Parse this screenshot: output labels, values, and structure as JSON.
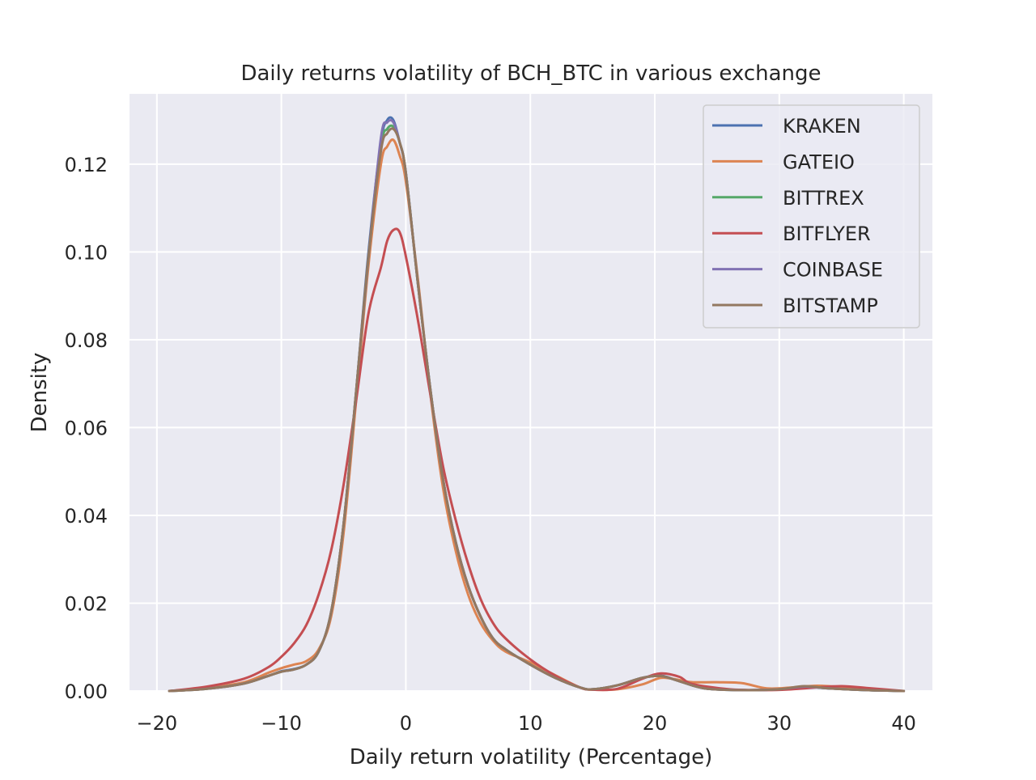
{
  "chart_data": {
    "type": "line",
    "title": "Daily returns volatility of BCH_BTC in various exchange",
    "xlabel": "Daily return volatility (Percentage)",
    "ylabel": "Density",
    "xlim": [
      -22.2,
      42.3
    ],
    "ylim": [
      0,
      0.136
    ],
    "xticks": [
      -20,
      -10,
      0,
      10,
      20,
      30,
      40
    ],
    "xtick_labels": [
      "−20",
      "−10",
      "0",
      "10",
      "20",
      "30",
      "40"
    ],
    "yticks": [
      0,
      0.02,
      0.04,
      0.06,
      0.08,
      0.1,
      0.12
    ],
    "ytick_labels": [
      "0.00",
      "0.02",
      "0.04",
      "0.06",
      "0.08",
      "0.10",
      "0.12"
    ],
    "grid": true,
    "legend_position": "top-right",
    "background": "#eaeaf2",
    "series": [
      {
        "name": "KRAKEN",
        "color": "#4c72b0",
        "x": [
          -19,
          -16,
          -13,
          -11,
          -10,
          -9,
          -8,
          -7,
          -6,
          -5,
          -4,
          -3,
          -2,
          -1.5,
          -1,
          -0.5,
          0,
          1,
          2,
          3,
          4,
          5,
          6,
          7,
          8,
          10,
          12,
          14,
          15,
          17,
          19,
          20.5,
          22,
          24,
          27,
          30,
          32,
          34,
          37,
          40
        ],
        "values": [
          0.0,
          0.0006,
          0.0018,
          0.0035,
          0.0045,
          0.005,
          0.006,
          0.009,
          0.018,
          0.038,
          0.068,
          0.1,
          0.125,
          0.13,
          0.13,
          0.125,
          0.118,
          0.092,
          0.068,
          0.048,
          0.034,
          0.024,
          0.017,
          0.012,
          0.0095,
          0.006,
          0.003,
          0.0008,
          0.0004,
          0.0013,
          0.003,
          0.0035,
          0.0022,
          0.0006,
          0.0002,
          0.0004,
          0.001,
          0.0006,
          0.0002,
          0.0
        ]
      },
      {
        "name": "GATEIO",
        "color": "#dd8452",
        "x": [
          -19,
          -16,
          -13,
          -11,
          -10,
          -9,
          -8,
          -7,
          -6,
          -5,
          -4,
          -3,
          -2,
          -1.5,
          -1,
          -0.5,
          0,
          1,
          2,
          3,
          4,
          5,
          6,
          7,
          8,
          10,
          12,
          14,
          15,
          17,
          19,
          20.5,
          22,
          23,
          25,
          27,
          29,
          31,
          33,
          35,
          37,
          40
        ],
        "values": [
          0.0,
          0.0007,
          0.002,
          0.0042,
          0.0052,
          0.006,
          0.0068,
          0.0095,
          0.017,
          0.036,
          0.066,
          0.097,
          0.12,
          0.124,
          0.1255,
          0.122,
          0.116,
          0.093,
          0.067,
          0.046,
          0.032,
          0.022,
          0.0155,
          0.0115,
          0.009,
          0.0065,
          0.0036,
          0.0008,
          0.0003,
          0.0004,
          0.0015,
          0.003,
          0.0025,
          0.002,
          0.002,
          0.0018,
          0.0006,
          0.0008,
          0.0012,
          0.0009,
          0.0003,
          0.0
        ]
      },
      {
        "name": "BITTREX",
        "color": "#55a868",
        "x": [
          -19,
          -16,
          -13,
          -11,
          -10,
          -9,
          -8,
          -7,
          -6,
          -5,
          -4,
          -3,
          -2,
          -1.5,
          -1,
          -0.5,
          0,
          1,
          2,
          3,
          4,
          5,
          6,
          7,
          8,
          10,
          12,
          14,
          15,
          17,
          19,
          20.5,
          22,
          24,
          27,
          30,
          32,
          34,
          37,
          40
        ],
        "values": [
          0.0,
          0.0005,
          0.0017,
          0.0035,
          0.0044,
          0.0049,
          0.006,
          0.009,
          0.018,
          0.038,
          0.068,
          0.099,
          0.124,
          0.128,
          0.1285,
          0.125,
          0.118,
          0.092,
          0.068,
          0.048,
          0.034,
          0.024,
          0.017,
          0.012,
          0.0095,
          0.006,
          0.003,
          0.0008,
          0.0004,
          0.0013,
          0.003,
          0.0034,
          0.0022,
          0.0006,
          0.0002,
          0.0004,
          0.001,
          0.0006,
          0.0002,
          0.0
        ]
      },
      {
        "name": "BITFLYER",
        "color": "#c44e52",
        "x": [
          -19,
          -16,
          -13,
          -11,
          -10,
          -9,
          -8,
          -7,
          -6,
          -5,
          -4,
          -3,
          -2,
          -1.5,
          -1,
          -0.5,
          0,
          1,
          2,
          3,
          4,
          5,
          6,
          7,
          8,
          10,
          12,
          14,
          15,
          17,
          19,
          20.5,
          22,
          23,
          26,
          29,
          31,
          33,
          35,
          37,
          40
        ],
        "values": [
          0.0,
          0.001,
          0.0028,
          0.0055,
          0.0078,
          0.0108,
          0.015,
          0.022,
          0.032,
          0.047,
          0.066,
          0.086,
          0.0965,
          0.1025,
          0.105,
          0.1045,
          0.099,
          0.084,
          0.067,
          0.051,
          0.039,
          0.029,
          0.021,
          0.0155,
          0.012,
          0.0072,
          0.0035,
          0.0008,
          0.0003,
          0.0005,
          0.0028,
          0.004,
          0.0032,
          0.0016,
          0.0004,
          0.0002,
          0.0004,
          0.0008,
          0.0011,
          0.0007,
          0.0
        ]
      },
      {
        "name": "COINBASE",
        "color": "#8172b3",
        "x": [
          -19,
          -16,
          -13,
          -11,
          -10,
          -9,
          -8,
          -7,
          -6,
          -5,
          -4,
          -3,
          -2,
          -1.5,
          -1,
          -0.5,
          0,
          1,
          2,
          3,
          4,
          5,
          6,
          7,
          8,
          10,
          12,
          14,
          15,
          17,
          19,
          20.5,
          22,
          24,
          27,
          30,
          32,
          34,
          37,
          40
        ],
        "values": [
          0.0,
          0.0005,
          0.0017,
          0.0035,
          0.0044,
          0.0049,
          0.006,
          0.009,
          0.018,
          0.038,
          0.068,
          0.099,
          0.126,
          0.1295,
          0.1295,
          0.125,
          0.118,
          0.092,
          0.068,
          0.048,
          0.034,
          0.024,
          0.017,
          0.012,
          0.0095,
          0.006,
          0.003,
          0.0008,
          0.0004,
          0.0013,
          0.003,
          0.0034,
          0.0022,
          0.0006,
          0.0002,
          0.0004,
          0.001,
          0.0006,
          0.0002,
          0.0
        ]
      },
      {
        "name": "BITSTAMP",
        "color": "#937860",
        "x": [
          -19,
          -16,
          -13,
          -11,
          -10,
          -9,
          -8,
          -7,
          -6,
          -5,
          -4,
          -3,
          -2,
          -1.5,
          -1,
          -0.5,
          0,
          1,
          2,
          3,
          4,
          5,
          6,
          7,
          8,
          10,
          12,
          14,
          15,
          17,
          19,
          20.5,
          22,
          24,
          27,
          30,
          32,
          34,
          37,
          40
        ],
        "values": [
          0.0,
          0.0005,
          0.0017,
          0.0035,
          0.0044,
          0.0049,
          0.006,
          0.009,
          0.018,
          0.038,
          0.068,
          0.099,
          0.123,
          0.127,
          0.128,
          0.125,
          0.118,
          0.092,
          0.068,
          0.048,
          0.034,
          0.024,
          0.017,
          0.012,
          0.0095,
          0.006,
          0.003,
          0.0008,
          0.0004,
          0.0013,
          0.003,
          0.0034,
          0.0022,
          0.0006,
          0.0002,
          0.0004,
          0.0011,
          0.0006,
          0.0002,
          0.0
        ]
      }
    ]
  }
}
